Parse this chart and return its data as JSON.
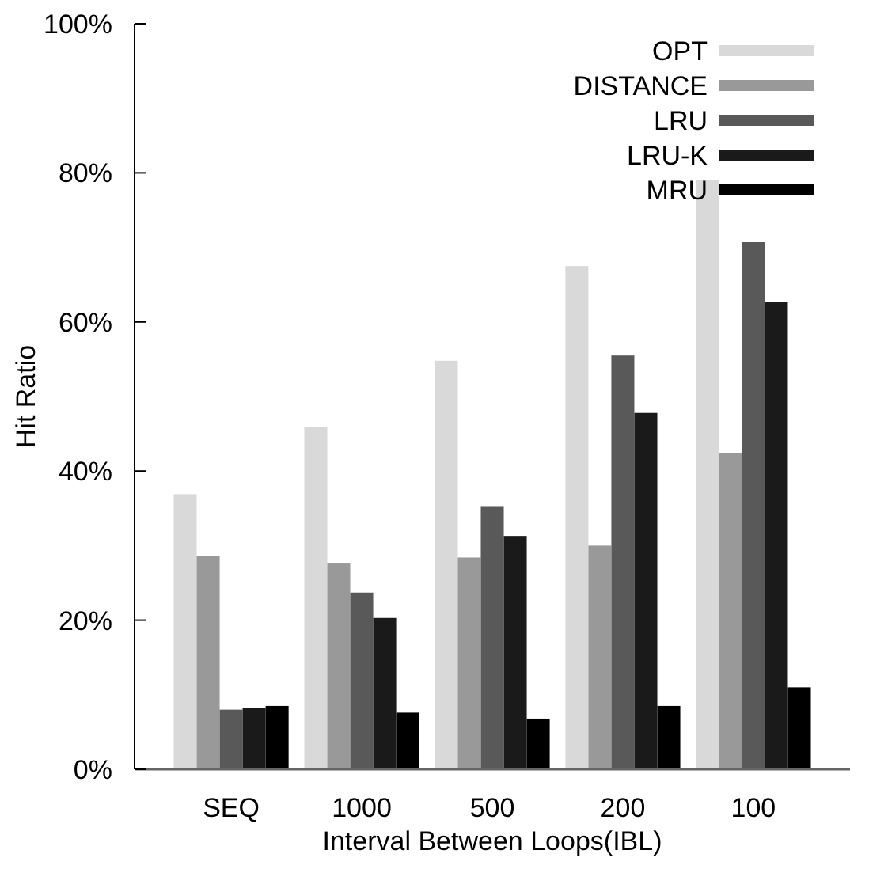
{
  "chart_data": {
    "type": "bar",
    "xlabel": "Interval Between Loops(IBL)",
    "ylabel": "Hit Ratio",
    "categories": [
      "SEQ",
      "1000",
      "500",
      "200",
      "100"
    ],
    "series": [
      {
        "name": "OPT",
        "color": "#d9d9d9",
        "values": [
          36.9,
          45.9,
          54.8,
          67.5,
          79.0
        ]
      },
      {
        "name": "DISTANCE",
        "color": "#999999",
        "values": [
          28.6,
          27.7,
          28.4,
          30.0,
          42.4
        ]
      },
      {
        "name": "LRU",
        "color": "#595959",
        "values": [
          8.0,
          23.7,
          35.3,
          55.5,
          70.7
        ]
      },
      {
        "name": "LRU-K",
        "color": "#1a1a1a",
        "values": [
          8.2,
          20.3,
          31.3,
          47.8,
          62.7
        ]
      },
      {
        "name": "MRU",
        "color": "#000000",
        "values": [
          8.5,
          7.6,
          6.8,
          8.5,
          11.0
        ]
      }
    ],
    "ylim": [
      0,
      100
    ],
    "yticks": [
      {
        "value": 0,
        "label": "0%"
      },
      {
        "value": 20,
        "label": "20%"
      },
      {
        "value": 40,
        "label": "40%"
      },
      {
        "value": 60,
        "label": "60%"
      },
      {
        "value": 80,
        "label": "80%"
      },
      {
        "value": 100,
        "label": "100%"
      }
    ],
    "legend": "top right",
    "grid": false
  }
}
